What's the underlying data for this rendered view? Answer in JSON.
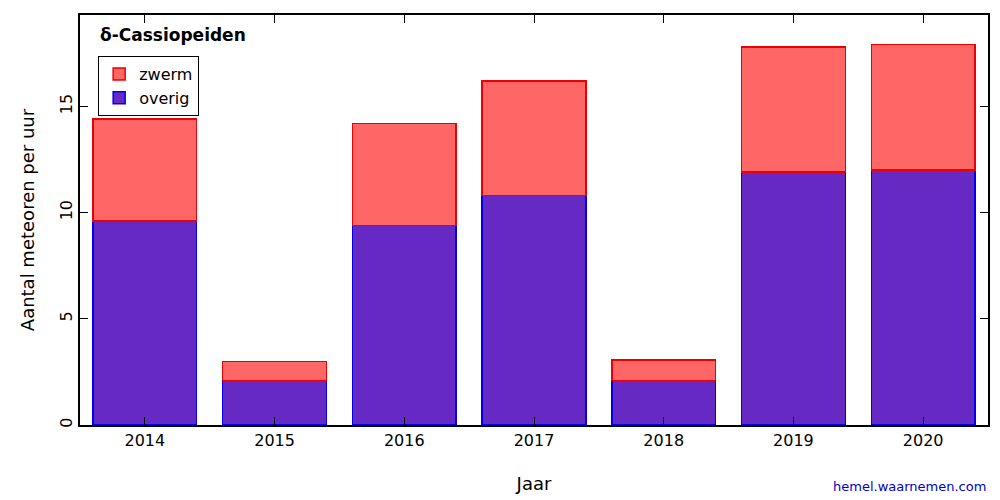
{
  "chart_data": {
    "type": "bar",
    "title": "δ-Cassiopeiden",
    "x_label": "Jaar",
    "y_label": "Aantal meteoren per uur",
    "categories": [
      "2014",
      "2015",
      "2016",
      "2017",
      "2018",
      "2019",
      "2020"
    ],
    "stacked": true,
    "legend": "upper left",
    "series": [
      {
        "name": "overig",
        "color": "#6629c4",
        "values": [
          9.6,
          2.1,
          9.4,
          10.8,
          2.1,
          11.9,
          12.0
        ]
      },
      {
        "name": "zwerm",
        "color": "#ff6666",
        "values": [
          4.8,
          0.9,
          4.8,
          5.4,
          0.95,
          5.9,
          5.9
        ]
      }
    ],
    "ylim": [
      0,
      19.3
    ],
    "yticks": [
      0,
      5,
      10,
      15
    ],
    "grid": false,
    "annotations": [
      {
        "text": "hemel.waarnemen.com"
      }
    ]
  }
}
